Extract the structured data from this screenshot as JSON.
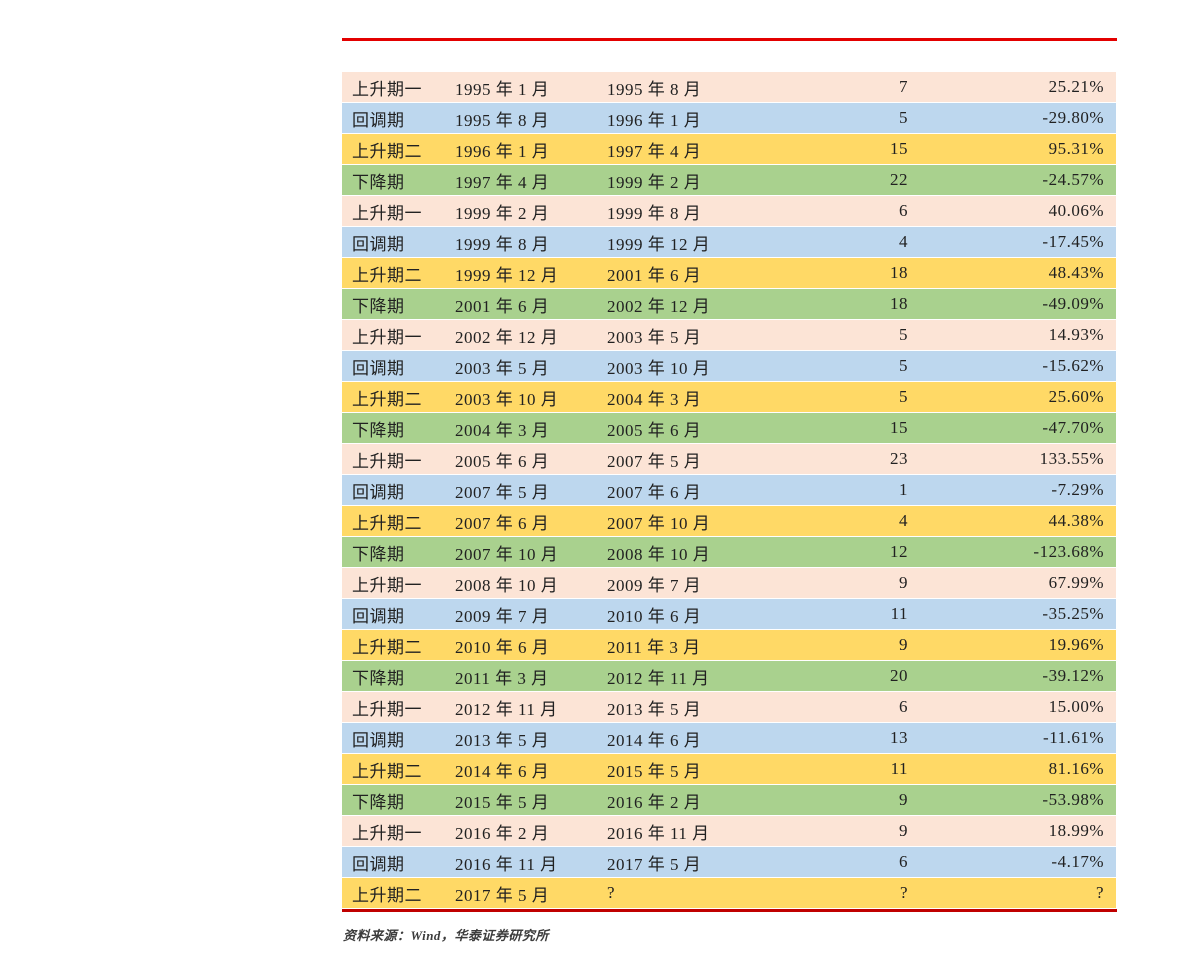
{
  "page": {
    "background": "#ffffff",
    "text_color": "#212121"
  },
  "rules": {
    "top_color": "#e30000",
    "bottom_color": "#c00000"
  },
  "table": {
    "phase_colors": {
      "rise1": "#fce4d6",
      "pullback": "#bdd7ee",
      "rise2": "#ffd966",
      "decline": "#a9d18e"
    },
    "rows": [
      {
        "type": "rise1",
        "phase": "上升期一",
        "start": "1995 年 1 月",
        "end": "1995 年 8 月",
        "months": "7",
        "change": "25.21%"
      },
      {
        "type": "pullback",
        "phase": "回调期",
        "start": "1995 年 8 月",
        "end": "1996 年 1 月",
        "months": "5",
        "change": "-29.80%"
      },
      {
        "type": "rise2",
        "phase": "上升期二",
        "start": "1996 年 1 月",
        "end": "1997 年 4 月",
        "months": "15",
        "change": "95.31%"
      },
      {
        "type": "decline",
        "phase": "下降期",
        "start": "1997 年 4 月",
        "end": "1999 年 2 月",
        "months": "22",
        "change": "-24.57%"
      },
      {
        "type": "rise1",
        "phase": "上升期一",
        "start": "1999 年 2 月",
        "end": "1999 年 8 月",
        "months": "6",
        "change": "40.06%"
      },
      {
        "type": "pullback",
        "phase": "回调期",
        "start": "1999 年 8 月",
        "end": "1999 年 12 月",
        "months": "4",
        "change": "-17.45%"
      },
      {
        "type": "rise2",
        "phase": "上升期二",
        "start": "1999 年 12 月",
        "end": "2001 年 6 月",
        "months": "18",
        "change": "48.43%"
      },
      {
        "type": "decline",
        "phase": "下降期",
        "start": "2001 年 6 月",
        "end": "2002 年 12 月",
        "months": "18",
        "change": "-49.09%"
      },
      {
        "type": "rise1",
        "phase": "上升期一",
        "start": "2002 年 12 月",
        "end": "2003 年 5 月",
        "months": "5",
        "change": "14.93%"
      },
      {
        "type": "pullback",
        "phase": "回调期",
        "start": "2003 年 5 月",
        "end": "2003 年 10 月",
        "months": "5",
        "change": "-15.62%"
      },
      {
        "type": "rise2",
        "phase": "上升期二",
        "start": "2003 年 10 月",
        "end": "2004 年 3 月",
        "months": "5",
        "change": "25.60%"
      },
      {
        "type": "decline",
        "phase": "下降期",
        "start": "2004 年 3 月",
        "end": "2005 年 6 月",
        "months": "15",
        "change": "-47.70%"
      },
      {
        "type": "rise1",
        "phase": "上升期一",
        "start": "2005 年 6 月",
        "end": "2007 年 5 月",
        "months": "23",
        "change": "133.55%"
      },
      {
        "type": "pullback",
        "phase": "回调期",
        "start": "2007 年 5 月",
        "end": "2007 年 6 月",
        "months": "1",
        "change": "-7.29%"
      },
      {
        "type": "rise2",
        "phase": "上升期二",
        "start": "2007 年 6 月",
        "end": "2007 年 10 月",
        "months": "4",
        "change": "44.38%"
      },
      {
        "type": "decline",
        "phase": "下降期",
        "start": "2007 年 10 月",
        "end": "2008 年 10 月",
        "months": "12",
        "change": "-123.68%"
      },
      {
        "type": "rise1",
        "phase": "上升期一",
        "start": "2008 年 10 月",
        "end": "2009 年 7 月",
        "months": "9",
        "change": "67.99%"
      },
      {
        "type": "pullback",
        "phase": "回调期",
        "start": "2009 年 7 月",
        "end": "2010 年 6 月",
        "months": "11",
        "change": "-35.25%"
      },
      {
        "type": "rise2",
        "phase": "上升期二",
        "start": "2010 年 6 月",
        "end": "2011 年 3 月",
        "months": "9",
        "change": "19.96%"
      },
      {
        "type": "decline",
        "phase": "下降期",
        "start": "2011 年 3 月",
        "end": "2012 年 11 月",
        "months": "20",
        "change": "-39.12%"
      },
      {
        "type": "rise1",
        "phase": "上升期一",
        "start": "2012 年 11 月",
        "end": "2013 年 5 月",
        "months": "6",
        "change": "15.00%"
      },
      {
        "type": "pullback",
        "phase": "回调期",
        "start": "2013 年 5 月",
        "end": "2014 年 6 月",
        "months": "13",
        "change": "-11.61%"
      },
      {
        "type": "rise2",
        "phase": "上升期二",
        "start": "2014 年 6 月",
        "end": "2015 年 5 月",
        "months": "11",
        "change": "81.16%"
      },
      {
        "type": "decline",
        "phase": "下降期",
        "start": "2015 年 5 月",
        "end": "2016 年 2 月",
        "months": "9",
        "change": "-53.98%"
      },
      {
        "type": "rise1",
        "phase": "上升期一",
        "start": "2016 年 2 月",
        "end": "2016 年 11 月",
        "months": "9",
        "change": "18.99%"
      },
      {
        "type": "pullback",
        "phase": "回调期",
        "start": "2016 年 11 月",
        "end": "2017 年 5 月",
        "months": "6",
        "change": "-4.17%"
      },
      {
        "type": "rise2",
        "phase": "上升期二",
        "start": "2017 年 5 月",
        "end": "?",
        "months": "?",
        "change": "?"
      }
    ]
  },
  "footer": {
    "source_note": "资料来源：Wind，华泰证券研究所"
  }
}
